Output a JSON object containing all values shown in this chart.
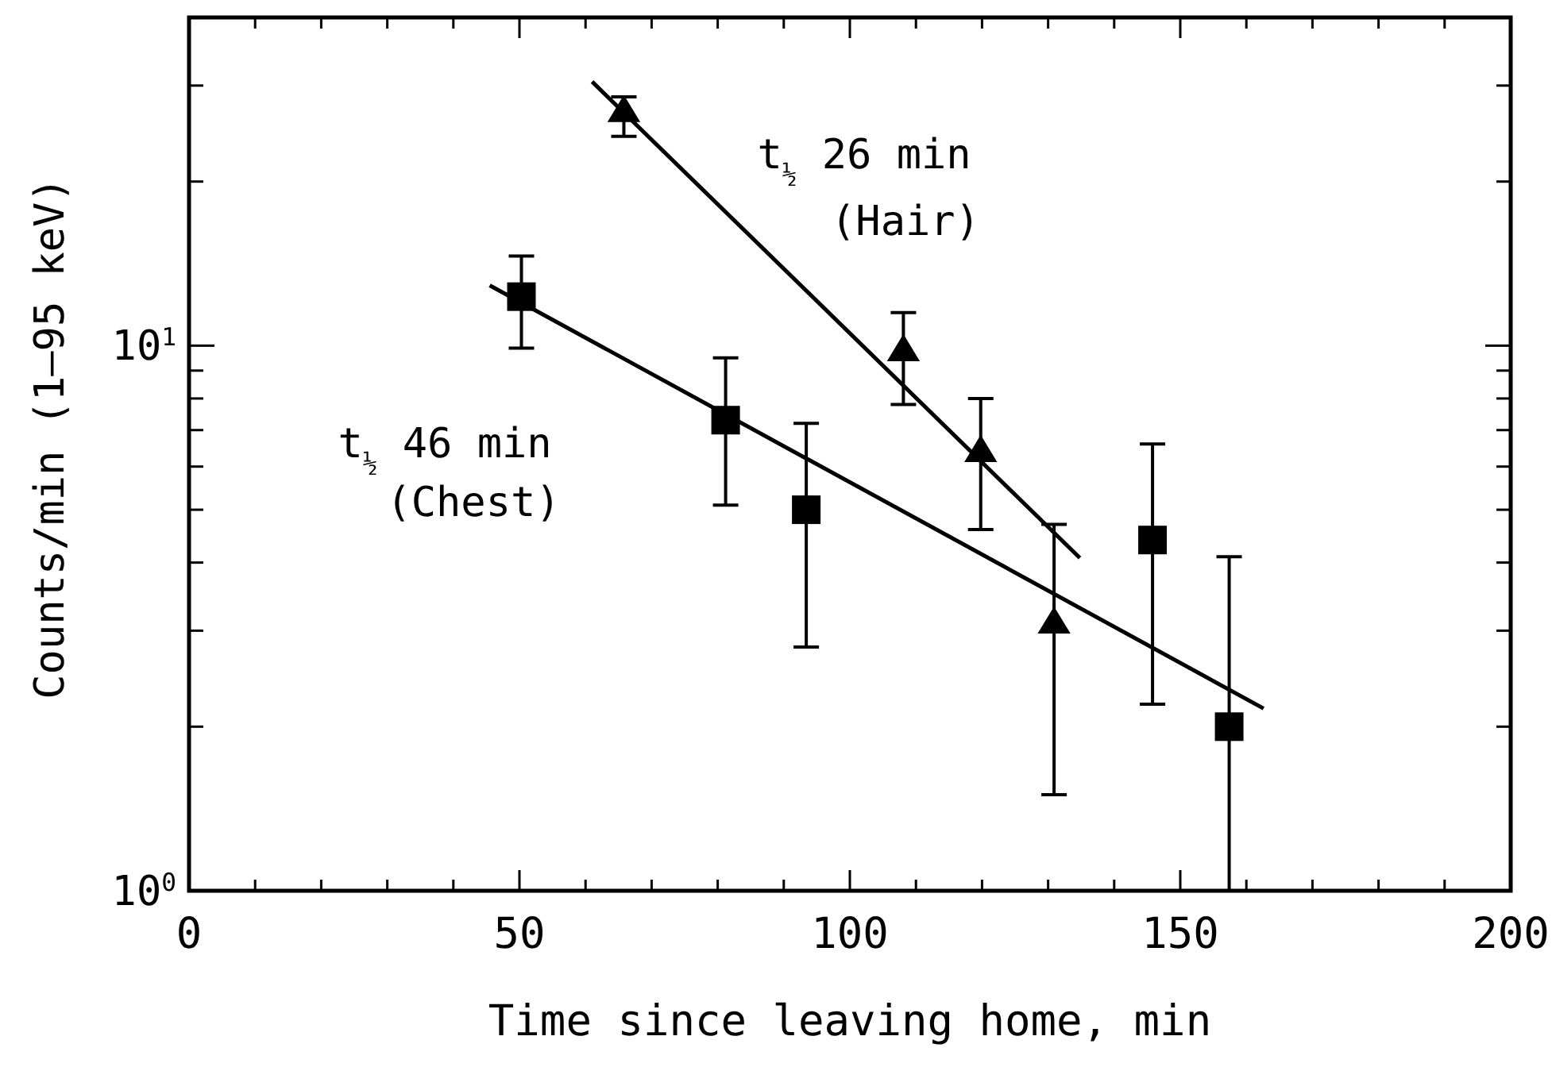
{
  "chart_data": {
    "type": "scatter",
    "xlabel": "Time since leaving home, min",
    "ylabel": "Counts/min (1–95 keV)",
    "log": "y",
    "grid": false,
    "xlim": [
      0,
      200
    ],
    "ylim": [
      1,
      40
    ],
    "xticks": [
      0,
      {
        "value": 10,
        "label": null
      },
      {
        "value": 20,
        "label": null
      },
      {
        "value": 30,
        "label": null
      },
      {
        "value": 40,
        "label": null
      },
      50,
      {
        "value": 60,
        "label": null
      },
      {
        "value": 70,
        "label": null
      },
      {
        "value": 80,
        "label": null
      },
      {
        "value": 90,
        "label": null
      },
      100,
      {
        "value": 110,
        "label": null
      },
      {
        "value": 120,
        "label": null
      },
      {
        "value": 130,
        "label": null
      },
      {
        "value": 140,
        "label": null
      },
      150,
      {
        "value": 160,
        "label": null
      },
      {
        "value": 170,
        "label": null
      },
      {
        "value": 180,
        "label": null
      },
      {
        "value": 190,
        "label": null
      },
      200
    ],
    "yticks": [
      {
        "value": 1,
        "label": "10$^{0}$"
      },
      {
        "value": 2,
        "label": null
      },
      {
        "value": 3,
        "label": null
      },
      {
        "value": 4,
        "label": null
      },
      {
        "value": 5,
        "label": null
      },
      {
        "value": 6,
        "label": null
      },
      {
        "value": 7,
        "label": null
      },
      {
        "value": 8,
        "label": null
      },
      {
        "value": 9,
        "label": null
      },
      {
        "value": 10,
        "label": "10$^{1}$"
      },
      {
        "value": 20,
        "label": null
      },
      {
        "value": 30,
        "label": null
      },
      {
        "value": 40,
        "label": null
      }
    ],
    "series": [
      {
        "marker": "triangle",
        "color": "#000000",
        "x": [
          65.8,
          108.1,
          119.8,
          130.9
        ],
        "values": [
          26.9,
          9.8,
          6.4,
          3.1
        ],
        "errors": [
          [
            24.2,
            28.6
          ],
          [
            7.8,
            11.5
          ],
          [
            4.6,
            8.0
          ],
          [
            1.5,
            4.7
          ]
        ]
      },
      {
        "marker": "square",
        "color": "#000000",
        "x": [
          50.3,
          81.2,
          93.4,
          145.8,
          157.4
        ],
        "values": [
          12.3,
          7.3,
          5.0,
          4.4,
          2.0
        ],
        "errors": [
          [
            9.9,
            14.6
          ],
          [
            5.1,
            9.5
          ],
          [
            2.8,
            7.2
          ],
          [
            2.2,
            6.6
          ],
          [
            1.0,
            4.1
          ]
        ]
      },
      {
        "type": "line",
        "marker": "none",
        "color": "#000000",
        "x": [
          61,
          134.8
        ],
        "values": [
          30.5,
          4.08
        ]
      },
      {
        "type": "line",
        "marker": "none",
        "color": "#000000",
        "x": [
          45.5,
          162.6
        ],
        "values": [
          12.9,
          2.16
        ]
      }
    ],
    "annotations": [
      "t$_{½}$ 26 min",
      "(Hair)",
      "t$_{½}$ 46 min",
      "(Chest)"
    ]
  }
}
